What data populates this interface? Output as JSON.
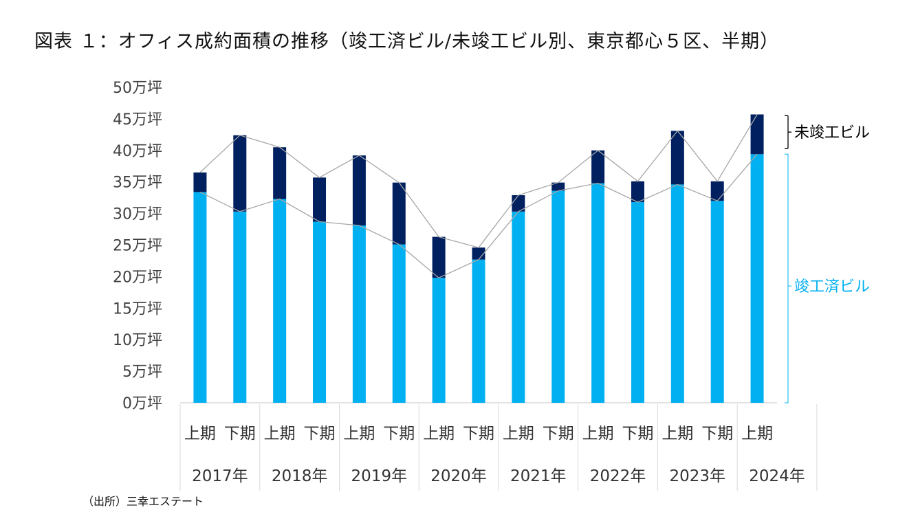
{
  "title": "図表 １：オフィス成約面積の推移（竣工済ビル/未竣工ビル別、東京都心５区、半期）",
  "source": "（出所）三幸エステート",
  "colors": {
    "completed": "#00b0f0",
    "uncompleted": "#002060",
    "line": "#a6a6a6",
    "grid": "#d9d9d9",
    "axis_text": "#404040"
  },
  "chart_data": {
    "type": "bar",
    "stacked": true,
    "unit": "万坪",
    "ylim": [
      0,
      50
    ],
    "ytick_labels": [
      "0万坪",
      "5万坪",
      "10万坪",
      "15万坪",
      "20万坪",
      "25万坪",
      "30万坪",
      "35万坪",
      "40万坪",
      "45万坪",
      "50万坪"
    ],
    "categories": [
      "上期",
      "下期",
      "上期",
      "下期",
      "上期",
      "下期",
      "上期",
      "下期",
      "上期",
      "下期",
      "上期",
      "下期",
      "上期",
      "下期",
      "上期"
    ],
    "years": [
      "2017年",
      "2018年",
      "2019年",
      "2020年",
      "2021年",
      "2022年",
      "2023年",
      "2024年"
    ],
    "series": [
      {
        "name": "竣工済ビル",
        "color": "#00b0f0",
        "values": [
          33.4,
          30.3,
          32.3,
          28.7,
          28.1,
          25.1,
          19.8,
          22.7,
          30.3,
          33.6,
          34.8,
          31.8,
          34.6,
          32.0,
          39.4
        ]
      },
      {
        "name": "未竣工ビル",
        "color": "#002060",
        "values": [
          3.1,
          12.1,
          8.2,
          7.0,
          11.1,
          9.8,
          6.5,
          1.9,
          2.6,
          1.3,
          5.2,
          3.3,
          8.5,
          3.1,
          6.3
        ]
      }
    ],
    "annotations": [
      "未竣工ビル",
      "竣工済ビル"
    ],
    "legend_position": "right"
  }
}
